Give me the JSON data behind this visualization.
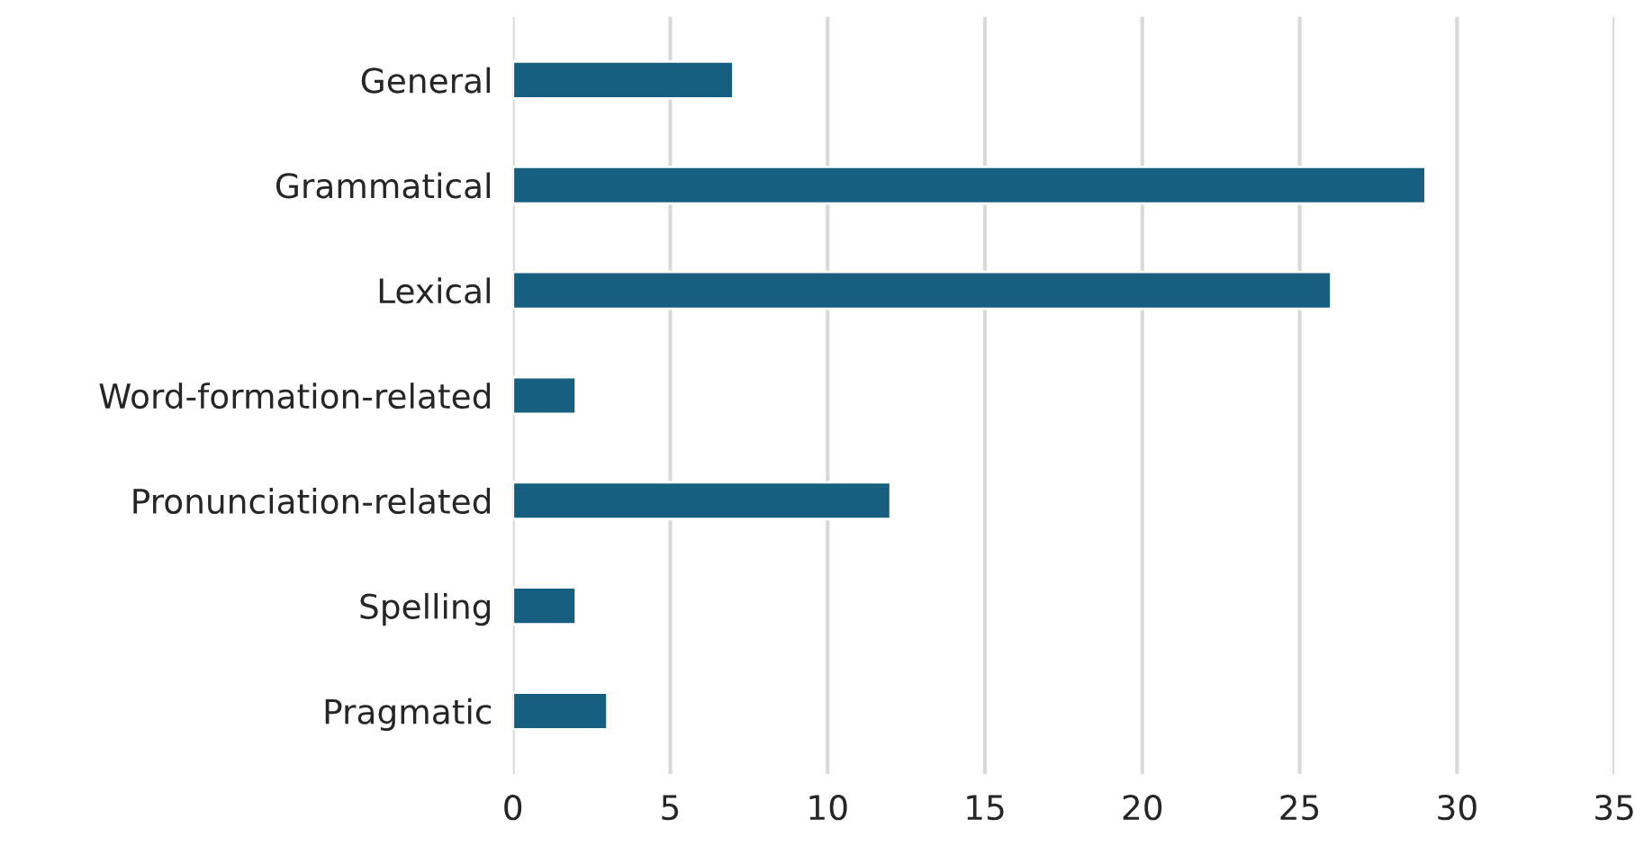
{
  "chart_data": {
    "type": "bar",
    "orientation": "horizontal",
    "categories": [
      "General",
      "Grammatical",
      "Lexical",
      "Word-formation-related",
      "Pronunciation-related",
      "Spelling",
      "Pragmatic"
    ],
    "values": [
      7,
      29,
      26,
      2,
      12,
      2,
      3
    ],
    "color": "#175f80",
    "xlim": [
      0,
      35
    ],
    "xticks": [
      0,
      5,
      10,
      15,
      20,
      25,
      30,
      35
    ],
    "grid": "x"
  }
}
